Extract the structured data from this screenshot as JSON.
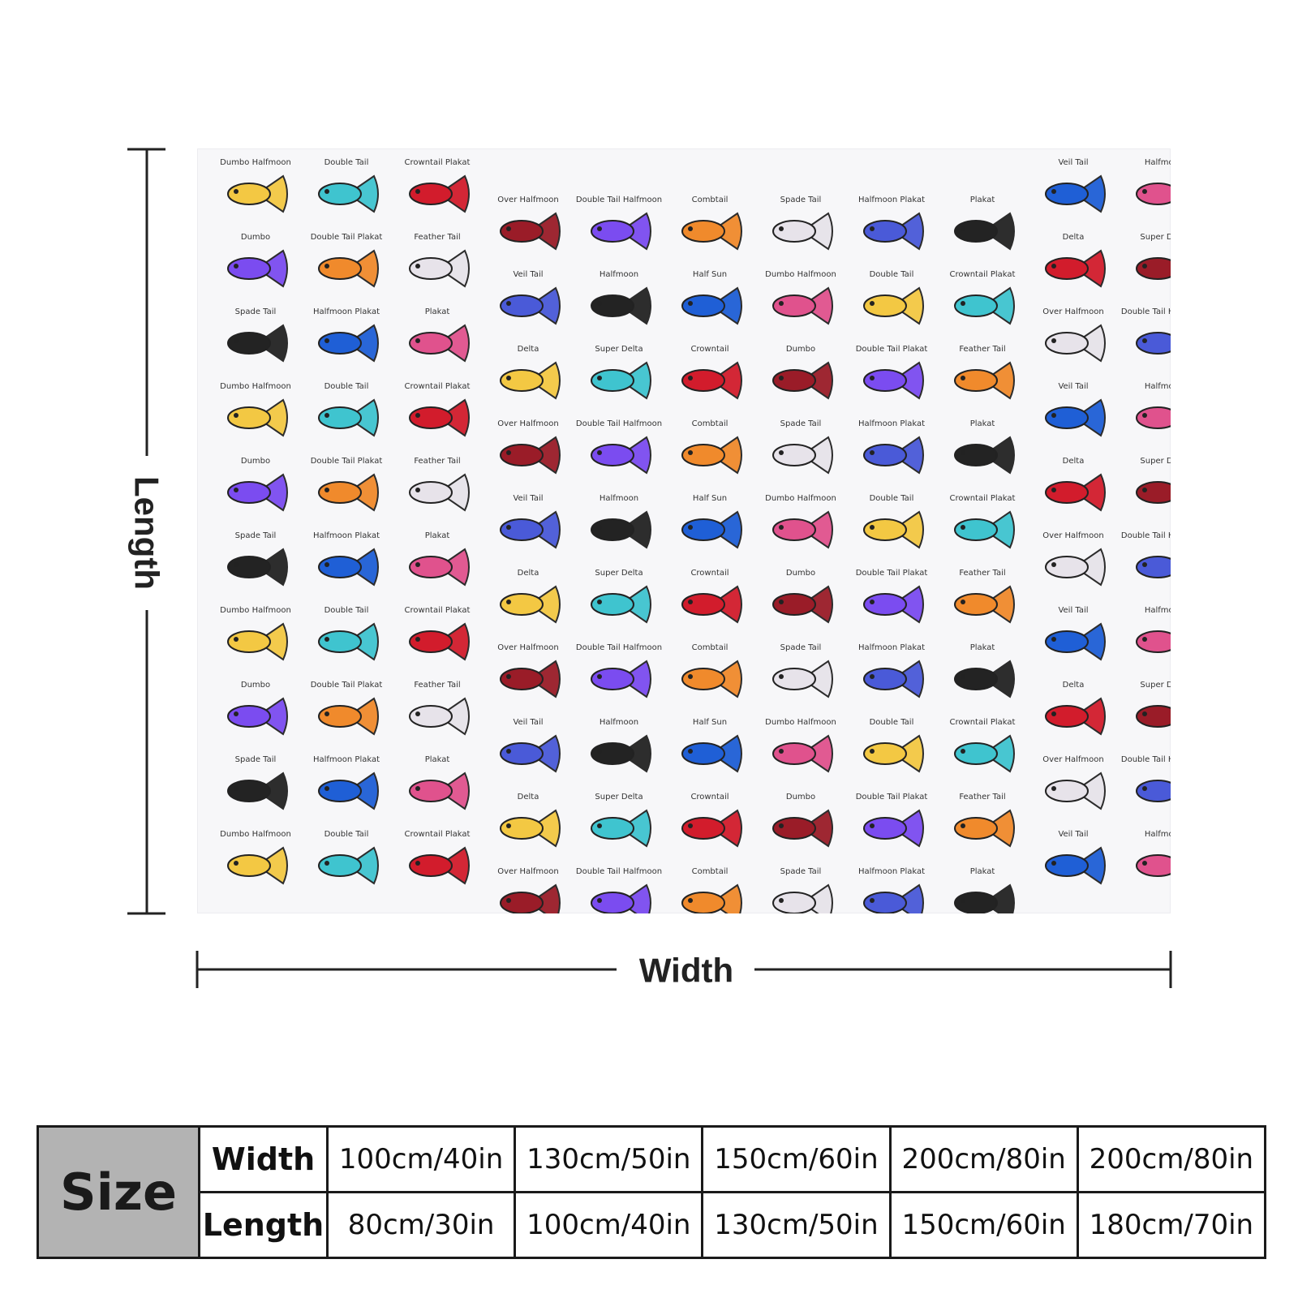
{
  "diagram": {
    "length_label": "Length",
    "width_label": "Width"
  },
  "fabric": {
    "background": "#f7f7f9",
    "columns": [
      [
        "Dumbo Halfmoon",
        "Dumbo",
        "Spade Tail"
      ],
      [
        "Double Tail",
        "Double Tail Plakat",
        "Halfmoon Plakat"
      ],
      [
        "Crowntail Plakat",
        "Feather Tail",
        "Plakat"
      ],
      [
        "Over Halfmoon",
        "Veil Tail",
        "Delta"
      ],
      [
        "Double Tail Halfmoon",
        "Halfmoon",
        "Super Delta"
      ],
      [
        "Combtail",
        "Half Sun",
        "Crowntail"
      ],
      [
        "Spade Tail",
        "Dumbo Halfmoon",
        "Dumbo"
      ],
      [
        "Halfmoon Plakat",
        "Double Tail",
        "Double Tail Plakat"
      ],
      [
        "Plakat",
        "Crowntail Plakat",
        "Feather Tail"
      ],
      [
        "Veil Tail",
        "Delta",
        "Over Halfmoon"
      ],
      [
        "Halfmoon",
        "Super Delta",
        "Double Tail Halfmoon"
      ]
    ],
    "fish_colors": [
      "#f3c843",
      "#7b4cf0",
      "#232323",
      "#3fc4cf",
      "#f08a2c",
      "#1f5fd6",
      "#d21c2c",
      "#e7e3ea",
      "#e0528d",
      "#9a1c28",
      "#4a5ad8"
    ]
  },
  "size_table": {
    "header": "Size",
    "rows": [
      {
        "label": "Width",
        "values": [
          "100cm/40in",
          "130cm/50in",
          "150cm/60in",
          "200cm/80in",
          "200cm/80in"
        ]
      },
      {
        "label": "Length",
        "values": [
          "80cm/30in",
          "100cm/40in",
          "130cm/50in",
          "150cm/60in",
          "180cm/70in"
        ]
      }
    ]
  }
}
